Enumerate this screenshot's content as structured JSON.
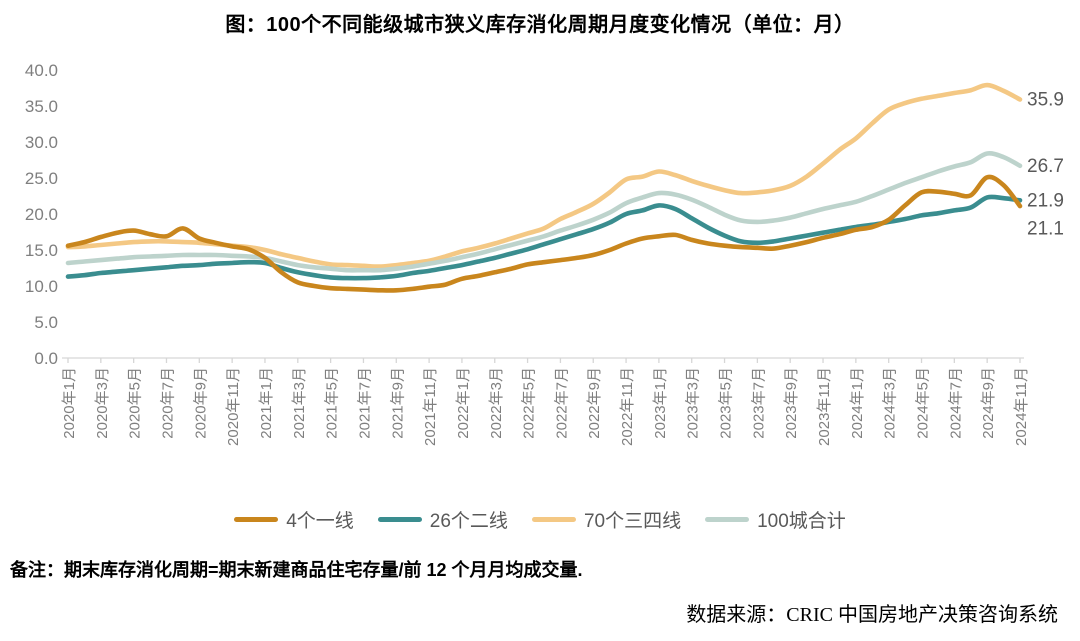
{
  "title": "图：100个不同能级城市狭义库存消化周期月度变化情况（单位：月）",
  "note": "备注：期末库存消化周期=期末新建商品住宅存量/前 12 个月月均成交量.",
  "source": "数据来源：CRIC 中国房地产决策咨询系统",
  "colors": {
    "axis_text": "#7F7F7F",
    "axis_line": "#D6D6D6",
    "end_label": "#595959",
    "legend_text": "#595959"
  },
  "chart_data": {
    "type": "line",
    "title": "图：100个不同能级城市狭义库存消化周期月度变化情况（单位：月）",
    "unit": "月",
    "ylim": [
      0,
      40
    ],
    "yticks": [
      "40.0",
      "35.0",
      "30.0",
      "25.0",
      "20.0",
      "15.0",
      "10.0",
      "5.0",
      "0.0"
    ],
    "grid": false,
    "legend_position": "bottom",
    "x_label_every": 2,
    "x": [
      "2020年1月",
      "2020年2月",
      "2020年3月",
      "2020年4月",
      "2020年5月",
      "2020年6月",
      "2020年7月",
      "2020年8月",
      "2020年9月",
      "2020年10月",
      "2020年11月",
      "2020年12月",
      "2021年1月",
      "2021年2月",
      "2021年3月",
      "2021年4月",
      "2021年5月",
      "2021年6月",
      "2021年7月",
      "2021年8月",
      "2021年9月",
      "2021年10月",
      "2021年11月",
      "2021年12月",
      "2022年1月",
      "2022年2月",
      "2022年3月",
      "2022年4月",
      "2022年5月",
      "2022年6月",
      "2022年7月",
      "2022年8月",
      "2022年9月",
      "2022年10月",
      "2022年11月",
      "2022年12月",
      "2023年1月",
      "2023年2月",
      "2023年3月",
      "2023年4月",
      "2023年5月",
      "2023年6月",
      "2023年7月",
      "2023年8月",
      "2023年9月",
      "2023年10月",
      "2023年11月",
      "2023年12月",
      "2024年1月",
      "2024年2月",
      "2024年3月",
      "2024年4月",
      "2024年5月",
      "2024年6月",
      "2024年7月",
      "2024年8月",
      "2024年9月",
      "2024年10月",
      "2024年11月"
    ],
    "series": [
      {
        "name": "4个一线",
        "id": "first-tier",
        "color": "#C9861D",
        "end_label": "21.1",
        "values": [
          15.6,
          16.1,
          16.8,
          17.4,
          17.7,
          17.2,
          16.9,
          18.0,
          16.6,
          16.0,
          15.5,
          15.1,
          13.9,
          11.9,
          10.5,
          10.0,
          9.7,
          9.6,
          9.5,
          9.4,
          9.4,
          9.6,
          9.9,
          10.2,
          11.0,
          11.4,
          11.9,
          12.4,
          13.0,
          13.3,
          13.6,
          13.9,
          14.3,
          15.0,
          15.9,
          16.6,
          16.9,
          17.1,
          16.4,
          15.9,
          15.6,
          15.4,
          15.3,
          15.2,
          15.6,
          16.1,
          16.7,
          17.2,
          17.8,
          18.2,
          19.2,
          21.2,
          23.0,
          23.1,
          22.8,
          22.6,
          25.1,
          24.0,
          21.1
        ]
      },
      {
        "name": "26个二线",
        "id": "second-tier",
        "color": "#3A8D8F",
        "end_label": "21.9",
        "values": [
          11.3,
          11.5,
          11.8,
          12.0,
          12.2,
          12.4,
          12.6,
          12.8,
          12.9,
          13.1,
          13.2,
          13.3,
          13.2,
          12.5,
          11.9,
          11.5,
          11.2,
          11.1,
          11.1,
          11.2,
          11.4,
          11.8,
          12.1,
          12.5,
          12.9,
          13.4,
          13.9,
          14.5,
          15.1,
          15.8,
          16.5,
          17.2,
          17.9,
          18.8,
          20.0,
          20.5,
          21.2,
          20.7,
          19.4,
          18.1,
          17.0,
          16.2,
          16.0,
          16.2,
          16.6,
          17.0,
          17.4,
          17.8,
          18.2,
          18.5,
          18.9,
          19.3,
          19.8,
          20.1,
          20.5,
          20.9,
          22.3,
          22.2,
          21.9
        ]
      },
      {
        "name": "70个三四线",
        "id": "third-fourth-tier",
        "color": "#F4C884",
        "end_label": "35.9",
        "values": [
          15.4,
          15.5,
          15.7,
          15.9,
          16.1,
          16.2,
          16.2,
          16.1,
          16.0,
          15.8,
          15.6,
          15.4,
          15.0,
          14.4,
          13.9,
          13.4,
          13.0,
          12.9,
          12.8,
          12.7,
          12.9,
          13.2,
          13.5,
          14.1,
          14.8,
          15.3,
          15.9,
          16.6,
          17.3,
          18.0,
          19.3,
          20.3,
          21.4,
          23.0,
          24.8,
          25.2,
          25.9,
          25.4,
          24.6,
          23.9,
          23.3,
          22.9,
          23.0,
          23.3,
          23.9,
          25.2,
          27.0,
          28.9,
          30.5,
          32.6,
          34.5,
          35.4,
          36.0,
          36.4,
          36.8,
          37.2,
          37.9,
          37.1,
          35.9
        ]
      },
      {
        "name": "100城合计",
        "id": "total-100-cities",
        "color": "#BDD3CC",
        "end_label": "26.7",
        "values": [
          13.2,
          13.4,
          13.6,
          13.8,
          14.0,
          14.1,
          14.2,
          14.3,
          14.3,
          14.3,
          14.2,
          14.1,
          13.9,
          13.4,
          12.9,
          12.6,
          12.4,
          12.2,
          12.2,
          12.2,
          12.4,
          12.7,
          13.1,
          13.5,
          14.0,
          14.5,
          15.1,
          15.7,
          16.3,
          16.9,
          17.7,
          18.4,
          19.2,
          20.2,
          21.5,
          22.3,
          22.9,
          22.7,
          22.0,
          21.0,
          19.9,
          19.1,
          18.9,
          19.1,
          19.5,
          20.1,
          20.7,
          21.2,
          21.7,
          22.5,
          23.4,
          24.3,
          25.1,
          25.9,
          26.6,
          27.2,
          28.4,
          27.9,
          26.7
        ]
      }
    ]
  }
}
